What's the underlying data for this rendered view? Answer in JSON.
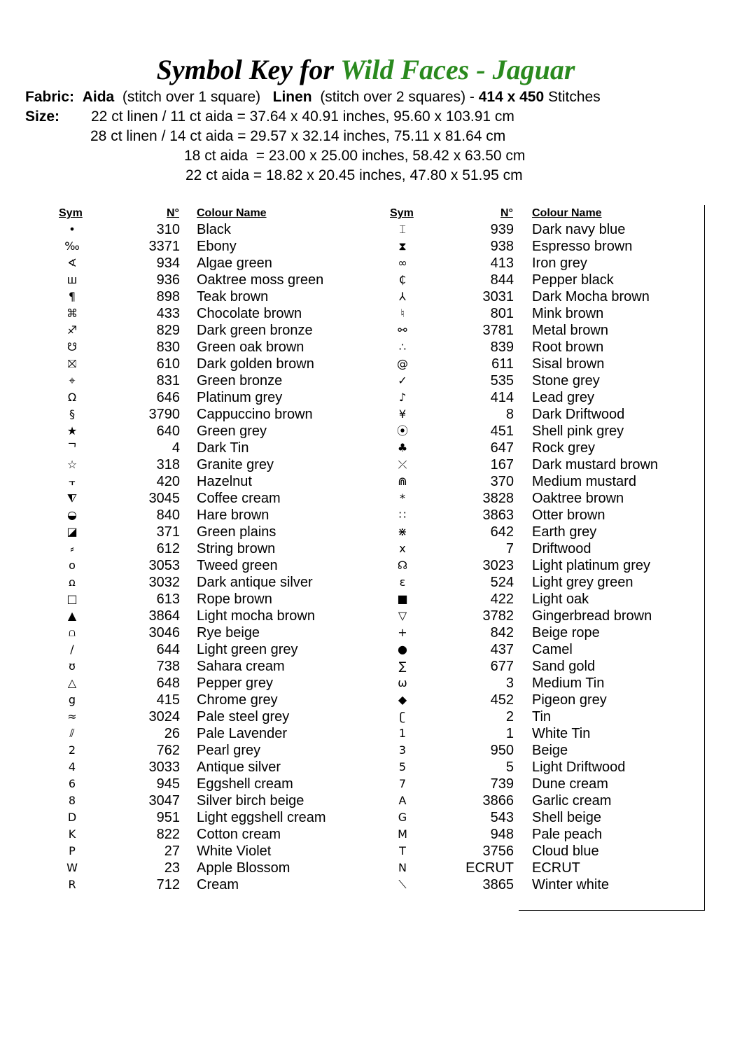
{
  "title": {
    "prefix": "Symbol Key for",
    "pattern": "Wild Faces - Jaguar",
    "accent": "#2a8a1e"
  },
  "fabric": {
    "label": "Fabric:",
    "aida": "Aida",
    "aida_note": "(stitch over 1 square)",
    "linen": "Linen",
    "linen_note": "(stitch over 2 squares) -",
    "dims": "414 x 450",
    "dims_unit": "Stitches"
  },
  "size": {
    "label": "Size:",
    "lines": [
      "22 ct linen / 11 ct aida = 37.64 x 40.91 inches, 95.60 x 103.91 cm",
      "28 ct linen / 14 ct aida = 29.57 x 32.14 inches, 75.11 x 81.64 cm",
      "18 ct aida  = 23.00 x 25.00 inches, 58.42 x 63.50 cm",
      "22 ct aida = 18.82 x 20.45 inches, 47.80 x 51.95 cm"
    ]
  },
  "headers": {
    "sym": "Sym",
    "num": "N°",
    "name": "Colour Name"
  },
  "left": [
    [
      "•",
      "310",
      "Black"
    ],
    [
      "‰",
      "3371",
      "Ebony"
    ],
    [
      "∢",
      "934",
      "Algae green"
    ],
    [
      "ш",
      "936",
      "Oaktree moss green"
    ],
    [
      "¶",
      "898",
      "Teak brown"
    ],
    [
      "⌘",
      "433",
      "Chocolate brown"
    ],
    [
      "♐",
      "829",
      "Dark green bronze"
    ],
    [
      "☋",
      "830",
      "Green oak brown"
    ],
    [
      "⛝",
      "610",
      "Dark golden brown"
    ],
    [
      "⌖",
      "831",
      "Green bronze"
    ],
    [
      "Ω",
      "646",
      "Platinum grey"
    ],
    [
      "§",
      "3790",
      "Cappuccino brown"
    ],
    [
      "★",
      "640",
      "Green grey"
    ],
    [
      "ᄀ",
      "4",
      "Dark Tin"
    ],
    [
      "☆",
      "318",
      "Granite grey"
    ],
    [
      "⫟",
      "420",
      "Hazelnut"
    ],
    [
      "⧨",
      "3045",
      "Coffee cream"
    ],
    [
      "◒",
      "840",
      "Hare brown"
    ],
    [
      "◪",
      "371",
      "Green plains"
    ],
    [
      "⸗",
      "612",
      "String brown"
    ],
    [
      "o",
      "3053",
      "Tweed green"
    ],
    [
      "ꭥ",
      "3032",
      "Dark antique silver"
    ],
    [
      "□",
      "613",
      "Rope brown"
    ],
    [
      "▲",
      "3864",
      "Light mocha brown"
    ],
    [
      "⩍",
      "3046",
      "Rye beige"
    ],
    [
      "∕",
      "644",
      "Light green grey"
    ],
    [
      "ʊ",
      "738",
      "Sahara cream"
    ],
    [
      "△",
      "648",
      "Pepper grey"
    ],
    [
      "g",
      "415",
      "Chrome grey"
    ],
    [
      "≈",
      "3024",
      "Pale steel grey"
    ],
    [
      "⫽",
      "26",
      "Pale Lavender"
    ],
    [
      "2",
      "762",
      "Pearl grey"
    ],
    [
      "4",
      "3033",
      "Antique silver"
    ],
    [
      "6",
      "945",
      "Eggshell cream"
    ],
    [
      "8",
      "3047",
      "Silver birch beige"
    ],
    [
      "D",
      "951",
      "Light eggshell cream"
    ],
    [
      "K",
      "822",
      "Cotton cream"
    ],
    [
      "P",
      "27",
      "White Violet"
    ],
    [
      "W",
      "23",
      "Apple Blossom"
    ],
    [
      "R",
      "712",
      "Cream"
    ]
  ],
  "right": [
    [
      "⌶",
      "939",
      "Dark navy blue"
    ],
    [
      "⧗",
      "938",
      "Espresso brown"
    ],
    [
      "∞",
      "413",
      "Iron grey"
    ],
    [
      "₵",
      "844",
      "Pepper black"
    ],
    [
      "⅄",
      "3031",
      "Dark Mocha brown"
    ],
    [
      "♮",
      "801",
      "Mink brown"
    ],
    [
      "⚯",
      "3781",
      "Metal brown"
    ],
    [
      "∴",
      "839",
      "Root brown"
    ],
    [
      "@",
      "611",
      "Sisal brown"
    ],
    [
      "✓",
      "535",
      "Stone grey"
    ],
    [
      "♪",
      "414",
      "Lead grey"
    ],
    [
      "¥",
      "8",
      "Dark Driftwood"
    ],
    [
      "⦿",
      "451",
      "Shell pink grey"
    ],
    [
      "♣",
      "647",
      "Rock grey"
    ],
    [
      "⤫",
      "167",
      "Dark mustard brown"
    ],
    [
      "⋒",
      "370",
      "Medium mustard"
    ],
    [
      "*",
      "3828",
      "Oaktree brown"
    ],
    [
      "∷",
      "3863",
      "Otter brown"
    ],
    [
      "⋇",
      "642",
      "Earth grey"
    ],
    [
      "x",
      "7",
      "Driftwood"
    ],
    [
      "☊",
      "3023",
      "Light platinum grey"
    ],
    [
      "ɛ",
      "524",
      "Light grey green"
    ],
    [
      "■",
      "422",
      "Light oak"
    ],
    [
      "▽",
      "3782",
      "Gingerbread brown"
    ],
    [
      "+",
      "842",
      "Beige rope"
    ],
    [
      "●",
      "437",
      "Camel"
    ],
    [
      "∑",
      "677",
      "Sand gold"
    ],
    [
      "ω",
      "3",
      "Medium Tin"
    ],
    [
      "◆",
      "452",
      "Pigeon grey"
    ],
    [
      "ʗ",
      "2",
      "Tin"
    ],
    [
      "1",
      "1",
      "White Tin"
    ],
    [
      "3",
      "950",
      "Beige"
    ],
    [
      "5",
      "5",
      "Light Driftwood"
    ],
    [
      "7",
      "739",
      "Dune cream"
    ],
    [
      "A",
      "3866",
      "Garlic cream"
    ],
    [
      "G",
      "543",
      "Shell beige"
    ],
    [
      "M",
      "948",
      "Pale peach"
    ],
    [
      "T",
      "3756",
      "Cloud blue"
    ],
    [
      "N",
      "ECRUT",
      "ECRUT"
    ],
    [
      "⟍",
      "3865",
      "Winter white"
    ]
  ]
}
